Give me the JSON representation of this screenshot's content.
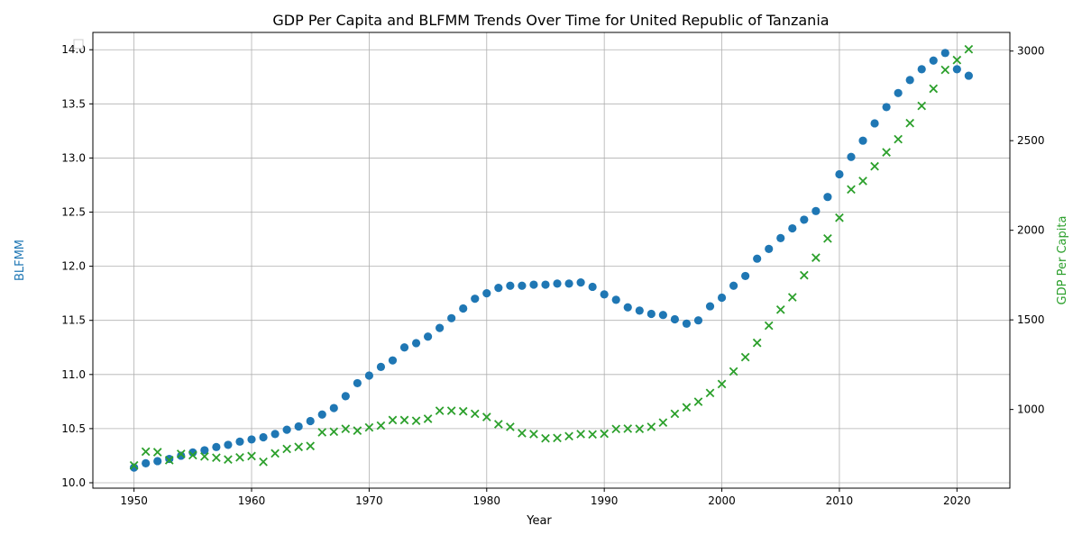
{
  "chart_data": {
    "type": "scatter",
    "title": "GDP Per Capita and BLFMM Trends Over Time for United Republic of Tanzania",
    "xlabel": "Year",
    "ylabel_left": "BLFMM",
    "ylabel_right": "GDP Per Capita",
    "xlim": [
      1946.5,
      2024.5
    ],
    "ylim_left": [
      9.95,
      14.16
    ],
    "ylim_right": [
      561,
      3104
    ],
    "x_ticks": [
      "1950",
      "1960",
      "1970",
      "1980",
      "1990",
      "2000",
      "2010",
      "2020"
    ],
    "y_left_ticks": [
      "10.0",
      "10.5",
      "11.0",
      "11.5",
      "12.0",
      "12.5",
      "13.0",
      "13.5",
      "14.0"
    ],
    "y_right_ticks": [
      "1000",
      "1500",
      "2000",
      "2500",
      "3000"
    ],
    "grid": true,
    "legend": "top-left (empty)",
    "colors": {
      "blfmm": "#1f77b4",
      "gdp": "#2ca02c",
      "grid": "#b0b0b0",
      "axis": "#000000"
    },
    "x": [
      1950,
      1951,
      1952,
      1953,
      1954,
      1955,
      1956,
      1957,
      1958,
      1959,
      1960,
      1961,
      1962,
      1963,
      1964,
      1965,
      1966,
      1967,
      1968,
      1969,
      1970,
      1971,
      1972,
      1973,
      1974,
      1975,
      1976,
      1977,
      1978,
      1979,
      1980,
      1981,
      1982,
      1983,
      1984,
      1985,
      1986,
      1987,
      1988,
      1989,
      1990,
      1991,
      1992,
      1993,
      1994,
      1995,
      1996,
      1997,
      1998,
      1999,
      2000,
      2001,
      2002,
      2003,
      2004,
      2005,
      2006,
      2007,
      2008,
      2009,
      2010,
      2011,
      2012,
      2013,
      2014,
      2015,
      2016,
      2017,
      2018,
      2019,
      2020,
      2021
    ],
    "series": [
      {
        "axis": "left",
        "marker": "circle",
        "values": [
          10.14,
          10.18,
          10.2,
          10.22,
          10.25,
          10.28,
          10.3,
          10.33,
          10.35,
          10.38,
          10.4,
          10.42,
          10.45,
          10.49,
          10.52,
          10.57,
          10.63,
          10.69,
          10.8,
          10.92,
          10.99,
          11.07,
          11.13,
          11.25,
          11.29,
          11.35,
          11.43,
          11.52,
          11.61,
          11.7,
          11.75,
          11.8,
          11.82,
          11.82,
          11.83,
          11.83,
          11.84,
          11.84,
          11.85,
          11.81,
          11.74,
          11.69,
          11.62,
          11.59,
          11.56,
          11.55,
          11.51,
          11.47,
          11.5,
          11.63,
          11.71,
          11.82,
          11.91,
          12.07,
          12.16,
          12.26,
          12.35,
          12.43,
          12.51,
          12.64,
          12.85,
          13.01,
          13.16,
          13.32,
          13.47,
          13.6,
          13.72,
          13.82,
          13.9,
          13.97,
          13.82,
          13.76
        ]
      },
      {
        "axis": "right",
        "marker": "x",
        "values": [
          688,
          765,
          762,
          717,
          752,
          745,
          738,
          731,
          721,
          733,
          740,
          708,
          755,
          780,
          791,
          796,
          873,
          876,
          892,
          882,
          900,
          910,
          941,
          941,
          937,
          948,
          993,
          993,
          990,
          976,
          958,
          918,
          903,
          868,
          863,
          839,
          841,
          851,
          863,
          861,
          865,
          891,
          893,
          892,
          903,
          927,
          976,
          1012,
          1043,
          1092,
          1142,
          1212,
          1292,
          1372,
          1468,
          1557,
          1626,
          1749,
          1847,
          1954,
          2070,
          2228,
          2275,
          2357,
          2435,
          2508,
          2598,
          2694,
          2790,
          2895,
          2950,
          3010
        ]
      }
    ]
  }
}
